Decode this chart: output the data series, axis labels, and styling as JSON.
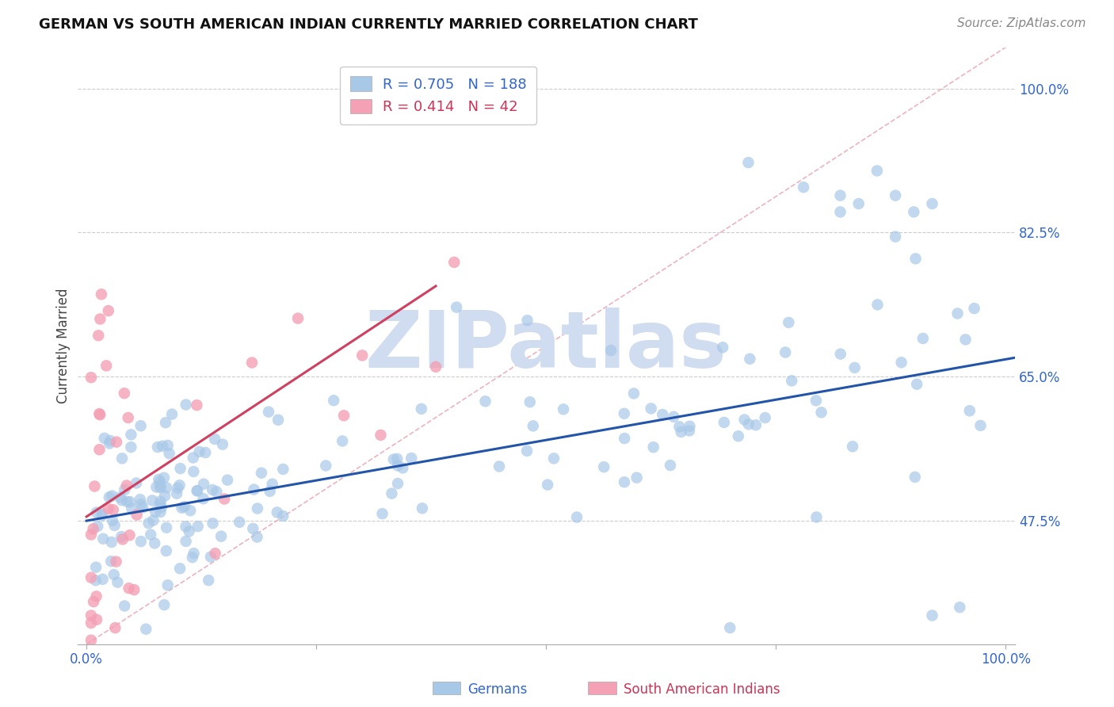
{
  "title": "GERMAN VS SOUTH AMERICAN INDIAN CURRENTLY MARRIED CORRELATION CHART",
  "source": "Source: ZipAtlas.com",
  "xlabel_blue": "Germans",
  "xlabel_pink": "South American Indians",
  "ylabel": "Currently Married",
  "blue_R": 0.705,
  "blue_N": 188,
  "pink_R": 0.414,
  "pink_N": 42,
  "blue_color": "#A8C8E8",
  "blue_line_color": "#2255AA",
  "pink_color": "#F4A0B5",
  "pink_line_color": "#D04060",
  "diag_color": "#E8A0B0",
  "background_color": "#FFFFFF",
  "watermark_text": "ZIPatlas",
  "watermark_color": "#D0DCEF",
  "xlim": [
    0.0,
    1.0
  ],
  "ylim": [
    0.325,
    1.05
  ],
  "yticks": [
    0.475,
    0.65,
    0.825,
    1.0
  ],
  "ytick_labels": [
    "47.5%",
    "65.0%",
    "82.5%",
    "100.0%"
  ],
  "title_fontsize": 13,
  "tick_fontsize": 12,
  "legend_fontsize": 13
}
